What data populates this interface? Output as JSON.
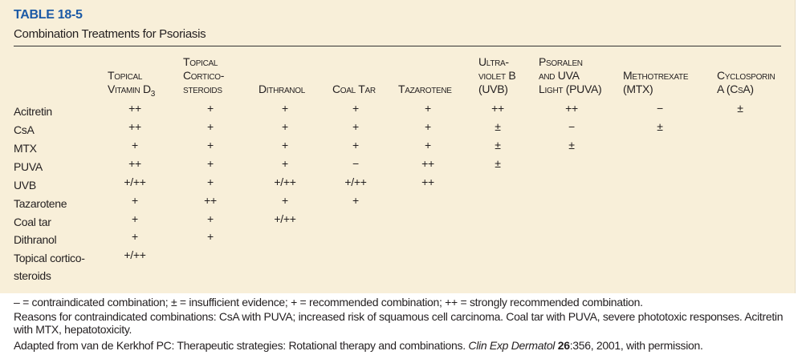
{
  "header": {
    "title": "TABLE 18-5",
    "subtitle": "Combination Treatments for Psoriasis"
  },
  "table": {
    "columns": [
      {
        "lines": [
          "Topical",
          "Vitamin D"
        ],
        "sub": "3"
      },
      {
        "lines": [
          "Topical",
          "Cortico-",
          "steroids"
        ]
      },
      {
        "lines": [
          "Dithranol"
        ]
      },
      {
        "lines": [
          "Coal Tar"
        ]
      },
      {
        "lines": [
          "Tazarotene"
        ]
      },
      {
        "lines": [
          "Ultra-",
          "violet B",
          "(UVB)"
        ]
      },
      {
        "lines": [
          "Psoralen",
          "and UVA",
          "Light (PUVA)"
        ]
      },
      {
        "lines": [
          "Methotrexate",
          "(MTX)"
        ]
      },
      {
        "lines": [
          "Cyclosporin",
          "A (CsA)"
        ]
      }
    ],
    "rows": [
      {
        "label": [
          "Acitretin"
        ],
        "cells": [
          "++",
          "+",
          "+",
          "+",
          "+",
          "++",
          "++",
          "−",
          "±"
        ]
      },
      {
        "label": [
          "CsA"
        ],
        "cells": [
          "++",
          "+",
          "+",
          "+",
          "+",
          "±",
          "−",
          "±"
        ]
      },
      {
        "label": [
          "MTX"
        ],
        "cells": [
          "+",
          "+",
          "+",
          "+",
          "+",
          "±",
          "±"
        ]
      },
      {
        "label": [
          "PUVA"
        ],
        "cells": [
          "++",
          "+",
          "+",
          "−",
          "++",
          "±"
        ]
      },
      {
        "label": [
          "UVB"
        ],
        "cells": [
          "+/++",
          "+",
          "+/++",
          "+/++",
          "++"
        ]
      },
      {
        "label": [
          "Tazarotene"
        ],
        "cells": [
          "+",
          "++",
          "+",
          "+"
        ]
      },
      {
        "label": [
          "Coal tar"
        ],
        "cells": [
          "+",
          "+",
          "+/++"
        ]
      },
      {
        "label": [
          "Dithranol"
        ],
        "cells": [
          "+",
          "+"
        ]
      },
      {
        "label": [
          "Topical cortico-",
          "steroids"
        ],
        "cells": [
          "+/++"
        ]
      }
    ]
  },
  "footnotes": {
    "legend": "– = contraindicated combination; ± = insufficient evidence; + = recommended combination; ++ = strongly recommended combination.",
    "reasons": "Reasons for contraindicated combinations: CsA with PUVA; increased risk of squamous cell carcinoma. Coal tar with PUVA, severe phototoxic responses. Acitretin with MTX, hepatotoxicity.",
    "source": [
      {
        "text": "Adapted from van de Kerkhof PC: Therapeutic strategies: Rotational therapy and combinations. "
      },
      {
        "text": "Clin Exp Dermatol",
        "style": "italic"
      },
      {
        "text": " 26",
        "style": "bold"
      },
      {
        "text": ":356, 2001, with permission."
      }
    ]
  }
}
